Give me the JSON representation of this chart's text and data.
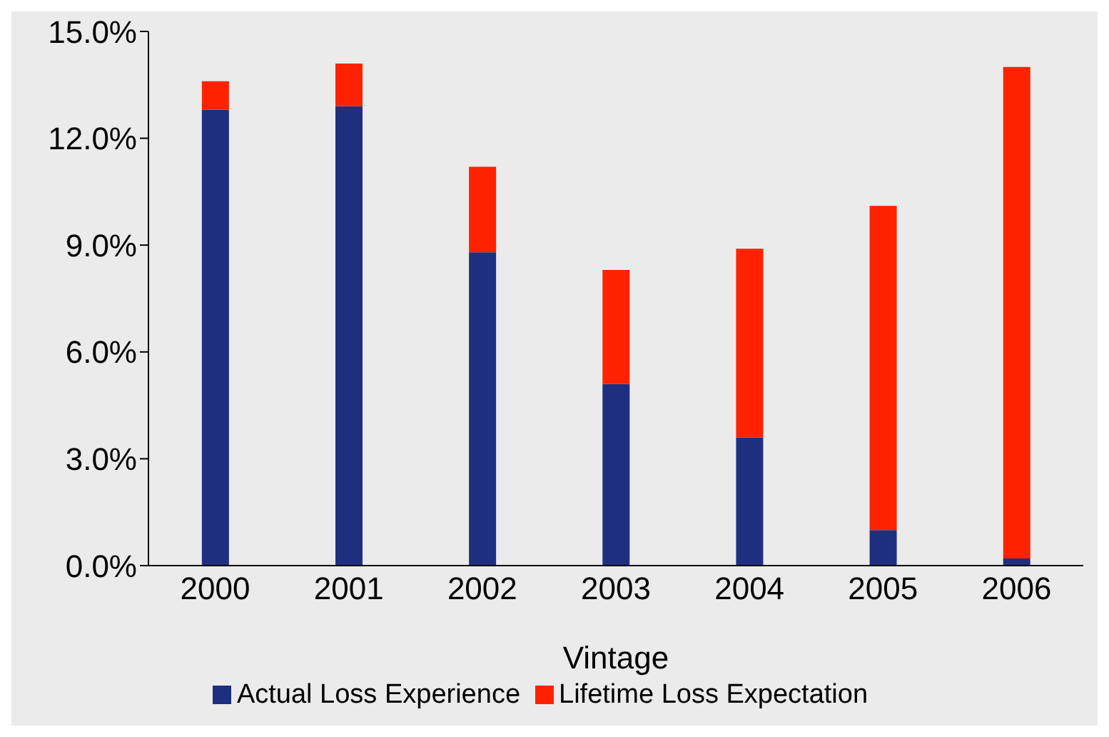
{
  "chart_data": {
    "type": "bar",
    "xlabel": "Vintage",
    "categories": [
      "2000",
      "2001",
      "2002",
      "2003",
      "2004",
      "2005",
      "2006"
    ],
    "stacked": true,
    "series": [
      {
        "name": "Actual Loss Experience",
        "color": "#1f2f80",
        "values": [
          12.8,
          12.9,
          8.8,
          5.1,
          3.6,
          1.0,
          0.2
        ]
      },
      {
        "name": "Lifetime Loss Expectation",
        "color": "#ff2200",
        "values": [
          0.8,
          1.2,
          2.4,
          3.2,
          5.3,
          9.1,
          13.8
        ]
      }
    ],
    "ylim": [
      0,
      15
    ],
    "yticks": [
      {
        "value": 0,
        "label": "0.0%"
      },
      {
        "value": 3,
        "label": "3.0%"
      },
      {
        "value": 6,
        "label": "6.0%"
      },
      {
        "value": 9,
        "label": "9.0%"
      },
      {
        "value": 12,
        "label": "12.0%"
      },
      {
        "value": 15,
        "label": "15.0%"
      }
    ],
    "grid": false,
    "legend": "bottom"
  }
}
